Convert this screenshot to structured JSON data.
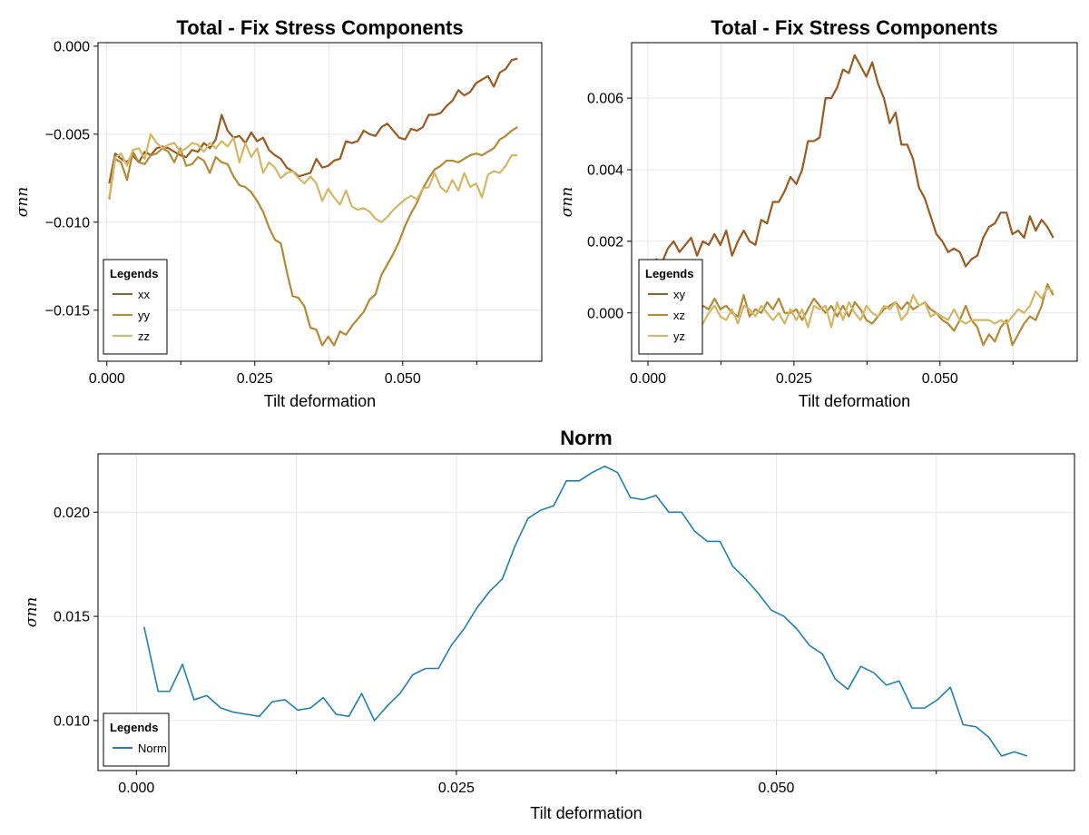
{
  "colors": {
    "xx": "#9b5a20",
    "yy": "#b58a34",
    "zz": "#d4b765",
    "norm": "#1f7fb5",
    "grid": "#e6e6e6",
    "axis": "#000000"
  },
  "chart_data": [
    {
      "type": "line",
      "title": "Total - Fix Stress Components",
      "xlabel": "Tilt deformation",
      "ylabel": "σnn",
      "xlim": [
        -0.0015,
        0.0735
      ],
      "ylim": [
        -0.0179,
        0.0002
      ],
      "xticks": [
        0.0,
        0.025,
        0.05
      ],
      "xtick_labels": [
        "0.000",
        "0.025",
        "0.050"
      ],
      "yticks": [
        0.0,
        -0.005,
        -0.01,
        -0.015
      ],
      "ytick_labels": [
        "0.000",
        "−0.005",
        "−0.010",
        "−0.015"
      ],
      "grid": true,
      "legend": {
        "title": "Legends",
        "position": "bottom-left"
      },
      "x": {
        "start": 0.0004,
        "step": 0.001,
        "count": 70
      },
      "series": [
        {
          "name": "xx",
          "color_key": "xx",
          "values": [
            -0.0078,
            -0.0061,
            -0.0064,
            -0.0066,
            -0.0062,
            -0.0066,
            -0.006,
            -0.0062,
            -0.0058,
            -0.0057,
            -0.0058,
            -0.006,
            -0.0062,
            -0.0063,
            -0.0059,
            -0.006,
            -0.0055,
            -0.0058,
            -0.0053,
            -0.0039,
            -0.0048,
            -0.0052,
            -0.0051,
            -0.0055,
            -0.0049,
            -0.0054,
            -0.0052,
            -0.0059,
            -0.0062,
            -0.0064,
            -0.0069,
            -0.0071,
            -0.0074,
            -0.0073,
            -0.0072,
            -0.0064,
            -0.0069,
            -0.0068,
            -0.0065,
            -0.0064,
            -0.0054,
            -0.0055,
            -0.0054,
            -0.0048,
            -0.005,
            -0.0051,
            -0.0046,
            -0.0044,
            -0.0048,
            -0.0052,
            -0.0053,
            -0.0047,
            -0.0048,
            -0.0046,
            -0.0039,
            -0.0039,
            -0.0038,
            -0.0034,
            -0.0031,
            -0.0025,
            -0.0028,
            -0.0026,
            -0.0021,
            -0.0019,
            -0.0017,
            -0.0023,
            -0.0015,
            -0.0013,
            -0.0008,
            -0.0007
          ]
        },
        {
          "name": "yy",
          "color_key": "yy",
          "values": [
            -0.0087,
            -0.0064,
            -0.0066,
            -0.0076,
            -0.006,
            -0.0066,
            -0.0067,
            -0.0062,
            -0.0061,
            -0.0058,
            -0.006,
            -0.0066,
            -0.0058,
            -0.0068,
            -0.0067,
            -0.0063,
            -0.0065,
            -0.0072,
            -0.0063,
            -0.0066,
            -0.0067,
            -0.0074,
            -0.0079,
            -0.008,
            -0.0083,
            -0.0088,
            -0.0094,
            -0.0103,
            -0.011,
            -0.0112,
            -0.0128,
            -0.0142,
            -0.0143,
            -0.0148,
            -0.016,
            -0.0161,
            -0.017,
            -0.0165,
            -0.017,
            -0.0162,
            -0.0164,
            -0.0159,
            -0.0155,
            -0.0151,
            -0.0144,
            -0.0141,
            -0.013,
            -0.0124,
            -0.0118,
            -0.0111,
            -0.0102,
            -0.0095,
            -0.0089,
            -0.0081,
            -0.0075,
            -0.007,
            -0.0068,
            -0.0065,
            -0.0065,
            -0.0066,
            -0.0064,
            -0.0062,
            -0.0061,
            -0.0062,
            -0.006,
            -0.0058,
            -0.0053,
            -0.0051,
            -0.0048,
            -0.0046
          ]
        },
        {
          "name": "zz",
          "color_key": "zz",
          "values": [
            -0.0086,
            -0.0063,
            -0.0061,
            -0.0068,
            -0.0059,
            -0.0058,
            -0.0064,
            -0.005,
            -0.0055,
            -0.0058,
            -0.0056,
            -0.0055,
            -0.006,
            -0.0058,
            -0.0055,
            -0.0056,
            -0.006,
            -0.0055,
            -0.0058,
            -0.0054,
            -0.0057,
            -0.0052,
            -0.0066,
            -0.0055,
            -0.0063,
            -0.0058,
            -0.0072,
            -0.0066,
            -0.0069,
            -0.0075,
            -0.0072,
            -0.0071,
            -0.0075,
            -0.0078,
            -0.0074,
            -0.0078,
            -0.0088,
            -0.0081,
            -0.0086,
            -0.009,
            -0.0082,
            -0.0091,
            -0.0093,
            -0.0092,
            -0.0094,
            -0.0098,
            -0.01,
            -0.0097,
            -0.0093,
            -0.009,
            -0.0087,
            -0.0085,
            -0.0087,
            -0.0081,
            -0.008,
            -0.0072,
            -0.008,
            -0.0083,
            -0.0076,
            -0.0082,
            -0.0072,
            -0.008,
            -0.0078,
            -0.0086,
            -0.0073,
            -0.0071,
            -0.0072,
            -0.0068,
            -0.0062,
            -0.0062
          ]
        }
      ]
    },
    {
      "type": "line",
      "title": "Total - Fix Stress Components",
      "xlabel": "Tilt deformation",
      "ylabel": "σnn",
      "xlim": [
        -0.0028,
        0.0735
      ],
      "ylim": [
        -0.00135,
        0.00755
      ],
      "xticks": [
        0.0,
        0.025,
        0.05
      ],
      "xtick_labels": [
        "0.000",
        "0.025",
        "0.050"
      ],
      "yticks": [
        0.0,
        0.002,
        0.004,
        0.006
      ],
      "ytick_labels": [
        "0.000",
        "0.002",
        "0.004",
        "0.006"
      ],
      "grid": true,
      "legend": {
        "title": "Legends",
        "position": "bottom-left"
      },
      "x": {
        "start": 0.0004,
        "step": 0.001,
        "count": 70
      },
      "series": [
        {
          "name": "xy",
          "color_key": "xx",
          "values": [
            0.0013,
            0.0015,
            0.0014,
            0.0018,
            0.002,
            0.0017,
            0.0019,
            0.0021,
            0.0016,
            0.002,
            0.0019,
            0.0022,
            0.0019,
            0.0023,
            0.0016,
            0.002,
            0.0023,
            0.002,
            0.0019,
            0.0026,
            0.0025,
            0.0031,
            0.0031,
            0.0034,
            0.0038,
            0.0036,
            0.004,
            0.0048,
            0.0048,
            0.0049,
            0.006,
            0.006,
            0.0063,
            0.0068,
            0.0067,
            0.0072,
            0.0069,
            0.0066,
            0.007,
            0.0064,
            0.006,
            0.0053,
            0.0056,
            0.0047,
            0.0047,
            0.0043,
            0.0035,
            0.0032,
            0.0027,
            0.0022,
            0.002,
            0.0017,
            0.0018,
            0.0017,
            0.0013,
            0.0015,
            0.0016,
            0.0021,
            0.0024,
            0.0025,
            0.0028,
            0.0028,
            0.0022,
            0.0023,
            0.0021,
            0.0027,
            0.0023,
            0.0026,
            0.0024,
            0.0021
          ]
        },
        {
          "name": "xz",
          "color_key": "yy",
          "values": [
            -0.0002,
            0.0002,
            -0.0002,
            -0.0001,
            0.0001,
            0.0004,
            0.0005,
            0.0001,
            -0.0003,
            0.0002,
            0.0001,
            0.0004,
            0.0001,
            0.0002,
            0.0,
            -0.0001,
            0.0005,
            -0.0001,
            0.0001,
            0.0,
            0.0003,
            0.0001,
            0.0004,
            0.0,
            0.0,
            0.0001,
            -0.0002,
            0.0001,
            0.0004,
            0.0002,
            0.0,
            0.0002,
            -0.0001,
            0.0002,
            -0.0001,
            0.0003,
            0.0001,
            -0.0002,
            -0.0003,
            -0.0001,
            0.0001,
            0.0002,
            0.0003,
            0.0001,
            0.0003,
            0.0001,
            0.0002,
            0.0003,
            0.0001,
            0.0,
            -0.0002,
            -0.0003,
            -0.0005,
            -0.0002,
            0.0002,
            -0.0002,
            -0.0004,
            -0.0009,
            -0.0006,
            -0.0008,
            -0.0004,
            -0.0002,
            -0.0009,
            -0.0006,
            -0.0003,
            -0.0001,
            -0.0002,
            0.0002,
            0.0008,
            0.0005
          ]
        },
        {
          "name": "yz",
          "color_key": "zz",
          "values": [
            0.0,
            -0.0001,
            0.0001,
            -0.0002,
            0.0,
            -0.0002,
            0.0002,
            -0.0004,
            0.0,
            -0.0003,
            0.0,
            0.0002,
            -0.0001,
            -0.0002,
            0.0001,
            -0.0003,
            0.0002,
            0.0001,
            -0.0001,
            0.0002,
            0.0,
            -0.0002,
            0.0,
            -0.0003,
            0.0001,
            -0.0002,
            0.0001,
            -0.0004,
            0.0002,
            0.0001,
            0.0002,
            -0.0004,
            0.0003,
            -0.0002,
            0.0003,
            0.0,
            -0.0002,
            0.0002,
            0.0,
            -0.0001,
            0.0002,
            0.0001,
            0.0003,
            -0.0002,
            0.0,
            0.0005,
            0.0002,
            0.0003,
            -0.0001,
            0.0,
            -0.0001,
            -0.0002,
            0.0001,
            -0.0002,
            -0.0003,
            -0.0002,
            -0.0002,
            -0.0002,
            -0.0002,
            -0.0003,
            -0.0002,
            -0.0003,
            -0.0001,
            0.0001,
            0.0,
            0.0002,
            0.0006,
            0.0004,
            0.0007,
            0.0006
          ]
        }
      ]
    },
    {
      "type": "line",
      "title": "Norm",
      "xlabel": "Tilt deformation",
      "ylabel": "σnn",
      "xlim": [
        -0.003,
        0.0733
      ],
      "ylim": [
        0.0076,
        0.0228
      ],
      "xticks": [
        0.0,
        0.025,
        0.05
      ],
      "xtick_labels": [
        "0.000",
        "0.025",
        "0.050"
      ],
      "yticks": [
        0.01,
        0.015,
        0.02
      ],
      "ytick_labels": [
        "0.010",
        "0.015",
        "0.020"
      ],
      "grid": true,
      "legend": {
        "title": "Legends",
        "position": "bottom-left"
      },
      "series": [
        {
          "name": "Norm",
          "color_key": "norm",
          "x": [
            0.0006,
            0.0017,
            0.0026,
            0.0036,
            0.0045,
            0.0055,
            0.0066,
            0.0076,
            0.0086,
            0.0096,
            0.0106,
            0.0116,
            0.0126,
            0.0136,
            0.0146,
            0.0156,
            0.0166,
            0.0176,
            0.0186,
            0.0196,
            0.0206,
            0.0216,
            0.0226,
            0.0236,
            0.0246,
            0.0256,
            0.0266,
            0.0276,
            0.0286,
            0.0296,
            0.0306,
            0.0316,
            0.0326,
            0.0336,
            0.0346,
            0.0356,
            0.0366,
            0.0376,
            0.0386,
            0.0396,
            0.0406,
            0.0416,
            0.0426,
            0.0436,
            0.0446,
            0.0456,
            0.0466,
            0.0476,
            0.0486,
            0.0496,
            0.0506,
            0.0516,
            0.0526,
            0.0536,
            0.0546,
            0.0556,
            0.0566,
            0.0576,
            0.0586,
            0.0596,
            0.0606,
            0.0616,
            0.0626,
            0.0636,
            0.0646,
            0.0656,
            0.0666,
            0.0676,
            0.0686,
            0.0696
          ],
          "values": [
            0.0145,
            0.0114,
            0.0114,
            0.0127,
            0.011,
            0.0112,
            0.0106,
            0.0104,
            0.0103,
            0.0102,
            0.0109,
            0.011,
            0.0105,
            0.0106,
            0.0111,
            0.0103,
            0.0102,
            0.0113,
            0.01,
            0.0107,
            0.0113,
            0.0122,
            0.0125,
            0.0125,
            0.0136,
            0.0144,
            0.0154,
            0.0162,
            0.0168,
            0.0184,
            0.0197,
            0.0201,
            0.0203,
            0.0215,
            0.0215,
            0.0219,
            0.0222,
            0.0219,
            0.0207,
            0.0206,
            0.0208,
            0.02,
            0.02,
            0.0191,
            0.0186,
            0.0186,
            0.0174,
            0.0168,
            0.0161,
            0.0153,
            0.015,
            0.0144,
            0.0136,
            0.0132,
            0.012,
            0.0115,
            0.0126,
            0.0123,
            0.0117,
            0.0119,
            0.0106,
            0.0106,
            0.011,
            0.0116,
            0.0098,
            0.0097,
            0.0092,
            0.0083,
            0.0085,
            0.0083
          ]
        }
      ]
    }
  ]
}
